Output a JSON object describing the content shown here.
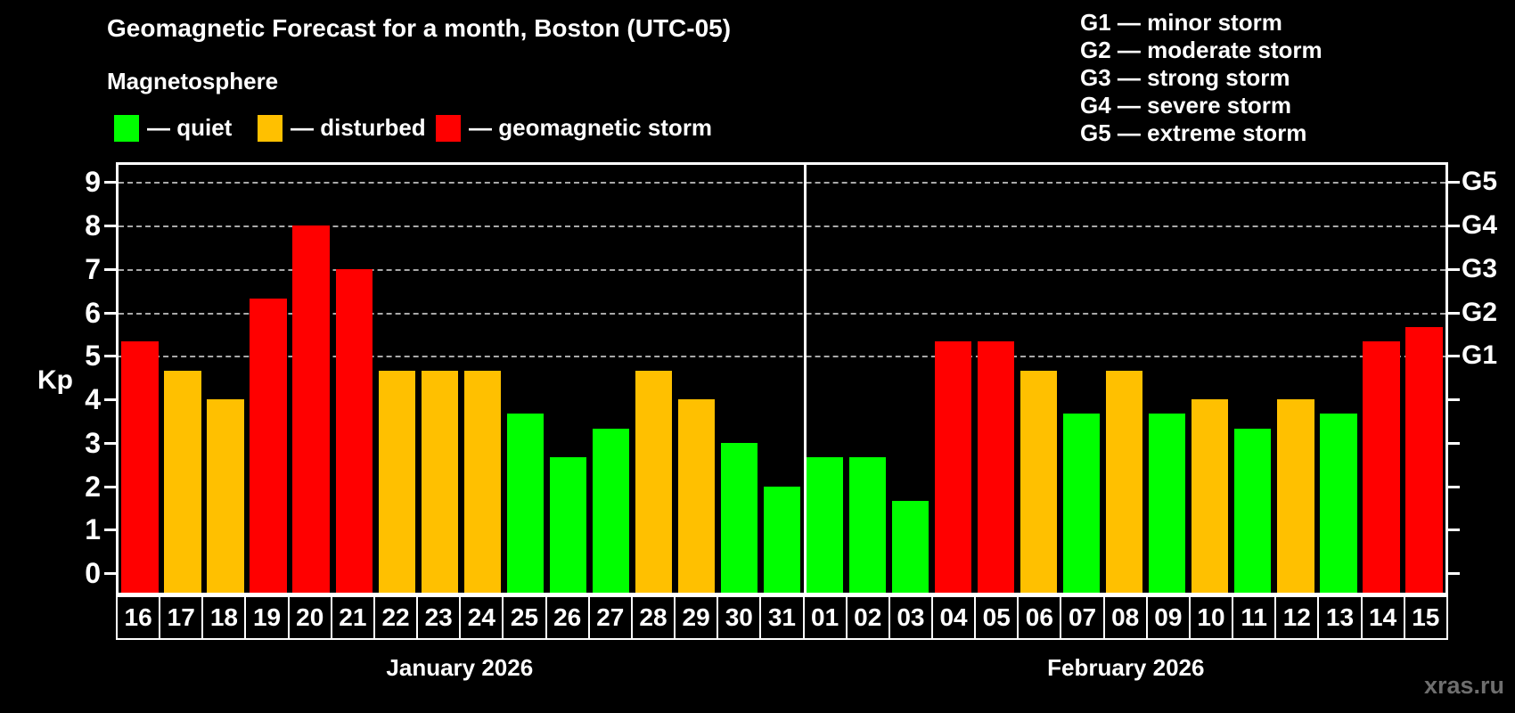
{
  "header": {
    "title": "Geomagnetic Forecast for a month, Boston (UTC-05)",
    "subtitle": "Magnetosphere"
  },
  "legend": {
    "items": [
      {
        "name": "quiet",
        "label": "— quiet",
        "color": "#00ff00"
      },
      {
        "name": "disturbed",
        "label": "— disturbed",
        "color": "#ffc000"
      },
      {
        "name": "storm",
        "label": "— geomagnetic storm",
        "color": "#ff0000"
      }
    ]
  },
  "storm_scale": {
    "items": [
      "G1 — minor storm",
      "G2 — moderate storm",
      "G3 — strong storm",
      "G4 — severe storm",
      "G5 — extreme storm"
    ]
  },
  "watermark": "xras.ru",
  "chart_data": {
    "type": "bar",
    "title": "Geomagnetic Forecast for a month, Boston (UTC-05)",
    "ylabel": "Kp",
    "ylim": [
      0,
      9
    ],
    "yticks": [
      0,
      1,
      2,
      3,
      4,
      5,
      6,
      7,
      8,
      9
    ],
    "gridlines": [
      5,
      6,
      7,
      8,
      9
    ],
    "grid_style": "dashed horizontal, Kp 5..9 only",
    "legend_position": "top-left",
    "right_axis": [
      {
        "value": 5,
        "label": "G1"
      },
      {
        "value": 6,
        "label": "G2"
      },
      {
        "value": 7,
        "label": "G3"
      },
      {
        "value": 8,
        "label": "G4"
      },
      {
        "value": 9,
        "label": "G5"
      }
    ],
    "months": [
      {
        "label": "January 2026",
        "days": [
          {
            "day": "16",
            "kp": 5.33,
            "status": "storm"
          },
          {
            "day": "17",
            "kp": 4.67,
            "status": "disturbed"
          },
          {
            "day": "18",
            "kp": 4.0,
            "status": "disturbed"
          },
          {
            "day": "19",
            "kp": 6.33,
            "status": "storm"
          },
          {
            "day": "20",
            "kp": 8.0,
            "status": "storm"
          },
          {
            "day": "21",
            "kp": 7.0,
            "status": "storm"
          },
          {
            "day": "22",
            "kp": 4.67,
            "status": "disturbed"
          },
          {
            "day": "23",
            "kp": 4.67,
            "status": "disturbed"
          },
          {
            "day": "24",
            "kp": 4.67,
            "status": "disturbed"
          },
          {
            "day": "25",
            "kp": 3.67,
            "status": "quiet"
          },
          {
            "day": "26",
            "kp": 2.67,
            "status": "quiet"
          },
          {
            "day": "27",
            "kp": 3.33,
            "status": "quiet"
          },
          {
            "day": "28",
            "kp": 4.67,
            "status": "disturbed"
          },
          {
            "day": "29",
            "kp": 4.0,
            "status": "disturbed"
          },
          {
            "day": "30",
            "kp": 3.0,
            "status": "quiet"
          },
          {
            "day": "31",
            "kp": 2.0,
            "status": "quiet"
          }
        ]
      },
      {
        "label": "February 2026",
        "days": [
          {
            "day": "01",
            "kp": 2.67,
            "status": "quiet"
          },
          {
            "day": "02",
            "kp": 2.67,
            "status": "quiet"
          },
          {
            "day": "03",
            "kp": 1.67,
            "status": "quiet"
          },
          {
            "day": "04",
            "kp": 5.33,
            "status": "storm"
          },
          {
            "day": "05",
            "kp": 5.33,
            "status": "storm"
          },
          {
            "day": "06",
            "kp": 4.67,
            "status": "disturbed"
          },
          {
            "day": "07",
            "kp": 3.67,
            "status": "quiet"
          },
          {
            "day": "08",
            "kp": 4.67,
            "status": "disturbed"
          },
          {
            "day": "09",
            "kp": 3.67,
            "status": "quiet"
          },
          {
            "day": "10",
            "kp": 4.0,
            "status": "disturbed"
          },
          {
            "day": "11",
            "kp": 3.33,
            "status": "quiet"
          },
          {
            "day": "12",
            "kp": 4.0,
            "status": "disturbed"
          },
          {
            "day": "13",
            "kp": 3.67,
            "status": "quiet"
          },
          {
            "day": "14",
            "kp": 5.33,
            "status": "storm"
          },
          {
            "day": "15",
            "kp": 5.67,
            "status": "storm"
          }
        ]
      }
    ]
  }
}
